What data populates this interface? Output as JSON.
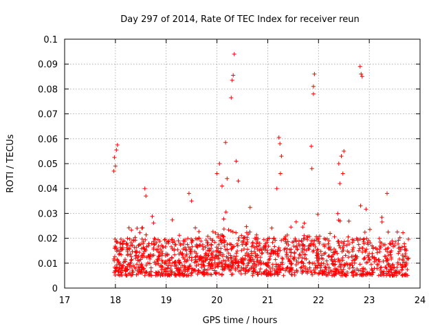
{
  "chart_data": {
    "type": "scatter",
    "title": "Day 297 of 2014, Rate Of TEC Index for receiver reun",
    "xlabel": "GPS time / hours",
    "ylabel": "ROTI / TECUs",
    "xlim": [
      17,
      24
    ],
    "ylim": [
      0,
      0.1
    ],
    "grid": true,
    "marker": "+",
    "color": "#ff0000",
    "xticks": [
      "17",
      "18",
      "19",
      "20",
      "21",
      "22",
      "23",
      "24"
    ],
    "yticks": [
      "0",
      "0.01",
      "0.02",
      "0.03",
      "0.04",
      "0.05",
      "0.06",
      "0.07",
      "0.08",
      "0.09",
      "0.1"
    ],
    "x_data_range": [
      17.97,
      23.78
    ],
    "baseline_band": [
      0.005,
      0.02
    ],
    "notable_points": [
      {
        "x": 17.97,
        "y": 0.047
      },
      {
        "x": 17.98,
        "y": 0.0525
      },
      {
        "x": 18.0,
        "y": 0.049
      },
      {
        "x": 18.02,
        "y": 0.0555
      },
      {
        "x": 18.04,
        "y": 0.0575
      },
      {
        "x": 18.58,
        "y": 0.04
      },
      {
        "x": 18.6,
        "y": 0.037
      },
      {
        "x": 19.45,
        "y": 0.038
      },
      {
        "x": 19.5,
        "y": 0.035
      },
      {
        "x": 20.0,
        "y": 0.046
      },
      {
        "x": 20.05,
        "y": 0.05
      },
      {
        "x": 20.1,
        "y": 0.041
      },
      {
        "x": 20.17,
        "y": 0.0585
      },
      {
        "x": 20.2,
        "y": 0.044
      },
      {
        "x": 20.28,
        "y": 0.0765
      },
      {
        "x": 20.3,
        "y": 0.0835
      },
      {
        "x": 20.32,
        "y": 0.0855
      },
      {
        "x": 20.34,
        "y": 0.094
      },
      {
        "x": 20.38,
        "y": 0.051
      },
      {
        "x": 20.42,
        "y": 0.043
      },
      {
        "x": 21.22,
        "y": 0.0605
      },
      {
        "x": 21.24,
        "y": 0.058
      },
      {
        "x": 21.27,
        "y": 0.053
      },
      {
        "x": 21.25,
        "y": 0.046
      },
      {
        "x": 21.18,
        "y": 0.04
      },
      {
        "x": 21.86,
        "y": 0.057
      },
      {
        "x": 21.87,
        "y": 0.048
      },
      {
        "x": 21.9,
        "y": 0.078
      },
      {
        "x": 21.9,
        "y": 0.081
      },
      {
        "x": 21.92,
        "y": 0.086
      },
      {
        "x": 22.4,
        "y": 0.05
      },
      {
        "x": 22.45,
        "y": 0.053
      },
      {
        "x": 22.5,
        "y": 0.055
      },
      {
        "x": 22.48,
        "y": 0.046
      },
      {
        "x": 22.42,
        "y": 0.042
      },
      {
        "x": 22.82,
        "y": 0.089
      },
      {
        "x": 22.84,
        "y": 0.086
      },
      {
        "x": 22.86,
        "y": 0.085
      },
      {
        "x": 23.35,
        "y": 0.038
      }
    ]
  }
}
